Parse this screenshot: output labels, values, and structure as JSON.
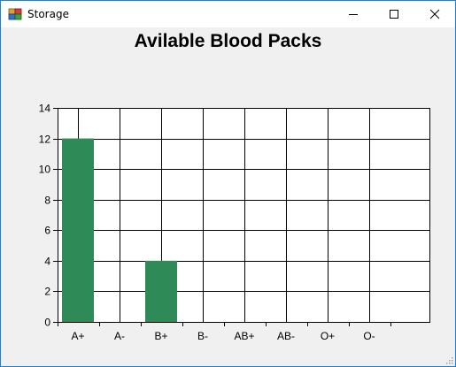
{
  "window": {
    "title": "Storage",
    "controls": {
      "minimize_icon": "minimize-icon",
      "maximize_icon": "maximize-icon",
      "close_icon": "close-icon"
    }
  },
  "colors": {
    "bar": "#2e8b57",
    "grid": "#000000",
    "background": "#f0f0f0",
    "plot_background": "#ffffff",
    "window_border": "#1883d7"
  },
  "chart_data": {
    "type": "bar",
    "title": "Avilable Blood Packs",
    "categories": [
      "A+",
      "A-",
      "B+",
      "B-",
      "AB+",
      "AB-",
      "O+",
      "O-"
    ],
    "values": [
      12,
      0,
      4,
      0,
      0,
      0,
      0,
      0
    ],
    "ylim": [
      0,
      14
    ],
    "yticks": [
      0,
      2,
      4,
      6,
      8,
      10,
      12,
      14
    ],
    "xlabel": "",
    "ylabel": "",
    "grid": true,
    "legend": "none"
  }
}
